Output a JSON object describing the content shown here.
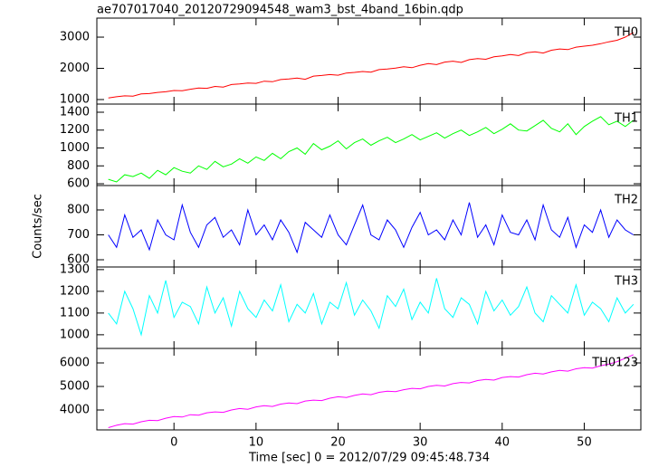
{
  "chart_data": [
    {
      "type": "line",
      "title": "ae707017040_20120729094548_wam3_bst_4band_16bin.qdp",
      "x": [
        -8,
        -7,
        -6,
        -5,
        -4,
        -3,
        -2,
        -1,
        0,
        1,
        2,
        3,
        4,
        5,
        6,
        7,
        8,
        9,
        10,
        11,
        12,
        13,
        14,
        15,
        16,
        17,
        18,
        19,
        20,
        21,
        22,
        23,
        24,
        25,
        26,
        27,
        28,
        29,
        30,
        31,
        32,
        33,
        34,
        35,
        36,
        37,
        38,
        39,
        40,
        41,
        42,
        43,
        44,
        45,
        46,
        47,
        48,
        49,
        50,
        51,
        52,
        53,
        54,
        55,
        56
      ],
      "series": [
        {
          "name": "TH0",
          "color": "#ff0000",
          "values": [
            1050,
            1090,
            1120,
            1110,
            1180,
            1190,
            1230,
            1250,
            1290,
            1280,
            1330,
            1370,
            1360,
            1420,
            1400,
            1480,
            1500,
            1530,
            1520,
            1590,
            1570,
            1640,
            1660,
            1690,
            1650,
            1750,
            1770,
            1800,
            1780,
            1850,
            1870,
            1900,
            1880,
            1960,
            1980,
            2010,
            2050,
            2020,
            2100,
            2150,
            2120,
            2200,
            2230,
            2190,
            2280,
            2310,
            2290,
            2370,
            2400,
            2440,
            2410,
            2500,
            2530,
            2490,
            2580,
            2620,
            2600,
            2680,
            2710,
            2740,
            2790,
            2850,
            2900,
            3000,
            3150
          ]
        }
      ],
      "xlim": [
        -9.4,
        56.9
      ],
      "xticks": [
        0,
        10,
        20,
        30,
        40,
        50
      ],
      "ylim": [
        855,
        3610
      ],
      "yticks": [
        1000,
        2000,
        3000
      ]
    },
    {
      "type": "line",
      "x": [
        -8,
        -7,
        -6,
        -5,
        -4,
        -3,
        -2,
        -1,
        0,
        1,
        2,
        3,
        4,
        5,
        6,
        7,
        8,
        9,
        10,
        11,
        12,
        13,
        14,
        15,
        16,
        17,
        18,
        19,
        20,
        21,
        22,
        23,
        24,
        25,
        26,
        27,
        28,
        29,
        30,
        31,
        32,
        33,
        34,
        35,
        36,
        37,
        38,
        39,
        40,
        41,
        42,
        43,
        44,
        45,
        46,
        47,
        48,
        49,
        50,
        51,
        52,
        53,
        54,
        55,
        56
      ],
      "series": [
        {
          "name": "TH1",
          "color": "#00ff00",
          "values": [
            650,
            620,
            700,
            680,
            720,
            660,
            750,
            700,
            780,
            740,
            720,
            800,
            760,
            850,
            790,
            820,
            880,
            830,
            900,
            860,
            940,
            880,
            960,
            1000,
            930,
            1050,
            980,
            1020,
            1080,
            990,
            1060,
            1100,
            1030,
            1080,
            1120,
            1060,
            1100,
            1150,
            1090,
            1130,
            1170,
            1110,
            1160,
            1200,
            1140,
            1180,
            1230,
            1160,
            1210,
            1270,
            1200,
            1190,
            1250,
            1310,
            1220,
            1180,
            1270,
            1150,
            1240,
            1300,
            1350,
            1260,
            1300,
            1240,
            1310
          ]
        }
      ],
      "xlim": [
        -9.4,
        56.9
      ],
      "xticks": [
        0,
        10,
        20,
        30,
        40,
        50
      ],
      "ylim": [
        580,
        1491
      ],
      "yticks": [
        600,
        800,
        1000,
        1200,
        1400
      ]
    },
    {
      "type": "line",
      "ylabel": "Counts/sec",
      "x": [
        -8,
        -7,
        -6,
        -5,
        -4,
        -3,
        -2,
        -1,
        0,
        1,
        2,
        3,
        4,
        5,
        6,
        7,
        8,
        9,
        10,
        11,
        12,
        13,
        14,
        15,
        16,
        17,
        18,
        19,
        20,
        21,
        22,
        23,
        24,
        25,
        26,
        27,
        28,
        29,
        30,
        31,
        32,
        33,
        34,
        35,
        36,
        37,
        38,
        39,
        40,
        41,
        42,
        43,
        44,
        45,
        46,
        47,
        48,
        49,
        50,
        51,
        52,
        53,
        54,
        55,
        56
      ],
      "series": [
        {
          "name": "TH2",
          "color": "#0000ff",
          "values": [
            700,
            650,
            780,
            690,
            720,
            640,
            760,
            700,
            680,
            820,
            710,
            650,
            740,
            770,
            690,
            720,
            660,
            800,
            700,
            740,
            680,
            760,
            710,
            630,
            750,
            720,
            690,
            780,
            700,
            660,
            740,
            820,
            700,
            680,
            760,
            720,
            650,
            730,
            790,
            700,
            720,
            680,
            760,
            700,
            830,
            690,
            740,
            660,
            780,
            710,
            700,
            760,
            680,
            820,
            720,
            690,
            770,
            650,
            740,
            710,
            800,
            690,
            760,
            720,
            700
          ]
        }
      ],
      "xlim": [
        -9.4,
        56.9
      ],
      "xticks": [
        0,
        10,
        20,
        30,
        40,
        50
      ],
      "ylim": [
        571,
        898
      ],
      "yticks": [
        600,
        700,
        800
      ]
    },
    {
      "type": "line",
      "x": [
        -8,
        -7,
        -6,
        -5,
        -4,
        -3,
        -2,
        -1,
        0,
        1,
        2,
        3,
        4,
        5,
        6,
        7,
        8,
        9,
        10,
        11,
        12,
        13,
        14,
        15,
        16,
        17,
        18,
        19,
        20,
        21,
        22,
        23,
        24,
        25,
        26,
        27,
        28,
        29,
        30,
        31,
        32,
        33,
        34,
        35,
        36,
        37,
        38,
        39,
        40,
        41,
        42,
        43,
        44,
        45,
        46,
        47,
        48,
        49,
        50,
        51,
        52,
        53,
        54,
        55,
        56
      ],
      "series": [
        {
          "name": "TH3",
          "color": "#00ffff",
          "values": [
            1100,
            1050,
            1200,
            1120,
            1000,
            1180,
            1100,
            1250,
            1080,
            1150,
            1130,
            1050,
            1220,
            1100,
            1170,
            1040,
            1200,
            1120,
            1080,
            1160,
            1110,
            1230,
            1060,
            1140,
            1100,
            1190,
            1050,
            1150,
            1120,
            1240,
            1090,
            1160,
            1110,
            1030,
            1180,
            1130,
            1210,
            1070,
            1150,
            1100,
            1260,
            1120,
            1080,
            1170,
            1140,
            1050,
            1200,
            1110,
            1160,
            1090,
            1130,
            1220,
            1100,
            1060,
            1180,
            1140,
            1100,
            1230,
            1090,
            1150,
            1120,
            1060,
            1170,
            1100,
            1140
          ]
        }
      ],
      "xlim": [
        -9.4,
        56.9
      ],
      "xticks": [
        0,
        10,
        20,
        30,
        40,
        50
      ],
      "ylim": [
        937,
        1312
      ],
      "yticks": [
        1000,
        1100,
        1200,
        1300
      ]
    },
    {
      "type": "line",
      "xlabel": "Time [sec] 0 = 2012/07/29 09:45:48.734",
      "x": [
        -8,
        -7,
        -6,
        -5,
        -4,
        -3,
        -2,
        -1,
        0,
        1,
        2,
        3,
        4,
        5,
        6,
        7,
        8,
        9,
        10,
        11,
        12,
        13,
        14,
        15,
        16,
        17,
        18,
        19,
        20,
        21,
        22,
        23,
        24,
        25,
        26,
        27,
        28,
        29,
        30,
        31,
        32,
        33,
        34,
        35,
        36,
        37,
        38,
        39,
        40,
        41,
        42,
        43,
        44,
        45,
        46,
        47,
        48,
        49,
        50,
        51,
        52,
        53,
        54,
        55,
        56
      ],
      "series": [
        {
          "name": "TH0123",
          "color": "#ff00ff",
          "values": [
            3250,
            3350,
            3420,
            3400,
            3500,
            3560,
            3550,
            3650,
            3720,
            3700,
            3800,
            3780,
            3880,
            3920,
            3900,
            4000,
            4060,
            4030,
            4130,
            4180,
            4150,
            4250,
            4300,
            4270,
            4380,
            4420,
            4400,
            4500,
            4560,
            4530,
            4620,
            4680,
            4650,
            4750,
            4800,
            4780,
            4860,
            4920,
            4900,
            5000,
            5050,
            5020,
            5120,
            5170,
            5150,
            5250,
            5300,
            5270,
            5380,
            5420,
            5400,
            5500,
            5560,
            5530,
            5620,
            5680,
            5650,
            5750,
            5800,
            5780,
            5880,
            5950,
            6050,
            6200,
            6350
          ]
        }
      ],
      "xlim": [
        -9.4,
        56.9
      ],
      "xticks": [
        0,
        10,
        20,
        30,
        40,
        50
      ],
      "ylim": [
        3154,
        6615
      ],
      "yticks": [
        4000,
        5000,
        6000
      ]
    }
  ]
}
